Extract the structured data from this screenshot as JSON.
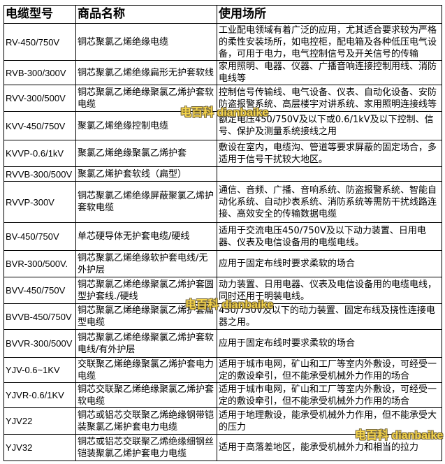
{
  "headers": [
    "电缆型号",
    "商品名称",
    "使用场所"
  ],
  "rows": [
    {
      "model": "RV-450/750V",
      "name": "铜芯聚氯乙烯绝缘电缆",
      "use": "工业配电领域有着广泛的应用，尤其适合要求较为严格的柔性安装场所，如电控柜，配电箱及各种低压电气设备，可用于电力，电气控制信号及开关信号的传输"
    },
    {
      "model": "RVB-300/300V",
      "name": "铜芯聚氯乙烯绝缘扁形无护套软线",
      "use": "家用照明、电器、仪器、广播音响连接控制用线、消防电线等"
    },
    {
      "model": "RVV-300/500V",
      "name": "铜芯聚氯乙烯绝缘聚氯乙烯护套软电缆",
      "use": "控制信号传输线、电气设备、仪表、自动化设备、安防防盗报警系统、高层楼宇对讲系统、家用照明连接线等"
    },
    {
      "model": "KVV-450/750V",
      "name": "聚氯乙烯绝缘控制电缆",
      "use": "额定电压450/750V及以下或0.6/1kV及以下控制、信号、保护及测量系统接线之用"
    },
    {
      "model": "KVVP-0.6/1kV",
      "name": "聚氯乙烯绝缘聚氯乙烯护套",
      "use": "敷设在室内，电缆沟、管道等要求屏蔽的固定场合，多适用于信号干扰较大地区。"
    },
    {
      "model": "RVVB-300/500V",
      "name": "聚氯乙烯护套软线（扁型）",
      "use": ""
    },
    {
      "model": "RVVP-300V",
      "name": "铜芯聚氯乙烯绝缘屏蔽聚氯乙烯护套软电缆",
      "use": "通信、音频、广播、音响系统、防盗报警系统、智能自动化系统、自动抄表系统、消防系统等需防干扰线路连接、高效安全的传输数据电缆"
    },
    {
      "model": "BV-450/750V",
      "name": "单芯硬导体无护套电缆/硬线",
      "use": "适用于交流电压450/750V及以下动力装置、日用电器、仪表及电信设备用的电缆电线。"
    },
    {
      "model": "BVR-300/500V.",
      "name": "铜芯聚氯乙烯绝缘软护套电线/无外护层",
      "use": "应用于固定布线时要求柔软的场合"
    },
    {
      "model": "BVV-450/750V",
      "name": "铜芯聚氯乙烯绝缘聚氯乙烯护套圆型护套线./硬线",
      "use": "动力装置、日用电器、仪表及电信设备用的电缆电线，同时还用于明装电线。"
    },
    {
      "model": "BVVB-450/750V",
      "name": "铜芯聚氯乙烯绝缘聚氯乙烯护套扁型电缆",
      "use": "450/750V及以下的动力装置、固定布线及挠性连接电器之用。"
    },
    {
      "model": "BVVR-300/500V",
      "name": "铜芯聚氯乙烯绝缘聚氯乙烯护套软电线/有外护层",
      "use": "应用于固定布线时要求柔软的场合"
    },
    {
      "model": "YJV-0.6~1KV",
      "name": "交联聚乙烯绝缘聚氯乙烯护套电力电缆",
      "use": "适用于城市电网，矿山和工厂等室内外敷设，可经受一定的敷设牵引，但不能承受机械外力作用的场合"
    },
    {
      "model": "YJVR-0.6/1KV",
      "name": "铜芯交联聚乙烯绝缘聚氯乙烯护套软电缆",
      "use": "适用于城市电网，矿山和工厂等室内外敷设，可经受一定的敷设牵引，但不能承受机械外力作用的场合"
    },
    {
      "model": "YJV22",
      "name": "铜芯或铝芯交联聚乙烯绝缘钢带铠装聚氯乙烯护套电力电缆",
      "use": "适用于地理敷设，能承受机械外力作用，但不能承受大的压力"
    },
    {
      "model": "YJV32",
      "name": "铜芯或铝芯交联聚乙烯绝缘细钢丝铠装聚氯乙烯护套电力电缆",
      "use": "适用于高落差地区，能承受机械外力和相当的拉力"
    }
  ],
  "watermark": "电百科 dianbaike",
  "watermark_color": "#f7d23a"
}
